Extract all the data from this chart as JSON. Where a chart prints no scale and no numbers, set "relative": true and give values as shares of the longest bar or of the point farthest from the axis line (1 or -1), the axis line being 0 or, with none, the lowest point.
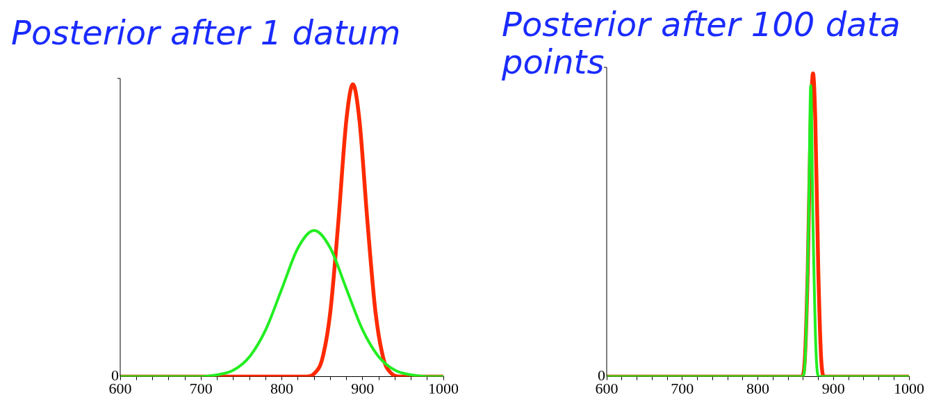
{
  "chart_data": [
    {
      "type": "line",
      "title": "Posterior after 1 datum",
      "relative": true,
      "xlim": [
        600,
        1000
      ],
      "xticks": [
        600,
        {
          "value": 620,
          "label": null
        },
        {
          "value": 640,
          "label": null
        },
        {
          "value": 660,
          "label": null
        },
        {
          "value": 680,
          "label": null
        },
        700,
        {
          "value": 720,
          "label": null
        },
        {
          "value": 740,
          "label": null
        },
        {
          "value": 760,
          "label": null
        },
        {
          "value": 780,
          "label": null
        },
        800,
        {
          "value": 820,
          "label": null
        },
        {
          "value": 840,
          "label": null
        },
        {
          "value": 860,
          "label": null
        },
        {
          "value": 880,
          "label": null
        },
        900,
        {
          "value": 920,
          "label": null
        },
        {
          "value": 940,
          "label": null
        },
        {
          "value": 960,
          "label": null
        },
        {
          "value": 980,
          "label": null
        },
        1000
      ],
      "legend": false,
      "grid": false,
      "marker": "none",
      "line_style": "solid",
      "annotations": [
        "0"
      ],
      "series": [
        {
          "color": "#ff2a00",
          "x": [
            600,
            830,
            840,
            850,
            860,
            870,
            880,
            888,
            896,
            906,
            916,
            926,
            936,
            946,
            1000
          ],
          "values": [
            0,
            0,
            0.01,
            0.06,
            0.22,
            0.53,
            0.88,
            1,
            0.88,
            0.53,
            0.22,
            0.06,
            0.01,
            0,
            0
          ]
        },
        {
          "color": "#22ee22",
          "x": [
            600,
            700,
            720,
            740,
            760,
            780,
            800,
            820,
            840,
            860,
            880,
            900,
            920,
            940,
            960,
            980,
            1000
          ],
          "values": [
            0,
            0,
            0.006,
            0.022,
            0.068,
            0.16,
            0.3,
            0.44,
            0.5,
            0.44,
            0.3,
            0.16,
            0.068,
            0.022,
            0.006,
            0,
            0
          ]
        }
      ]
    },
    {
      "type": "line",
      "title": "Posterior after 100 data points",
      "relative": true,
      "xlim": [
        600,
        1000
      ],
      "xticks": [
        600,
        {
          "value": 620,
          "label": null
        },
        {
          "value": 640,
          "label": null
        },
        {
          "value": 660,
          "label": null
        },
        {
          "value": 680,
          "label": null
        },
        700,
        {
          "value": 720,
          "label": null
        },
        {
          "value": 740,
          "label": null
        },
        {
          "value": 760,
          "label": null
        },
        {
          "value": 780,
          "label": null
        },
        800,
        {
          "value": 820,
          "label": null
        },
        {
          "value": 840,
          "label": null
        },
        {
          "value": 860,
          "label": null
        },
        {
          "value": 880,
          "label": null
        },
        900,
        {
          "value": 920,
          "label": null
        },
        {
          "value": 940,
          "label": null
        },
        {
          "value": 960,
          "label": null
        },
        {
          "value": 980,
          "label": null
        },
        1000
      ],
      "legend": false,
      "grid": false,
      "marker": "none",
      "line_style": "solid",
      "annotations": [
        "0"
      ],
      "series": [
        {
          "color": "#ff2a00",
          "x": [
            600,
            858,
            862,
            866,
            870,
            873,
            876,
            880,
            884,
            888,
            1000
          ],
          "values": [
            0,
            0,
            0.05,
            0.35,
            0.85,
            1,
            0.85,
            0.35,
            0.05,
            0,
            0
          ]
        },
        {
          "color": "#22ee22",
          "x": [
            600,
            859,
            863,
            867,
            870,
            873,
            877,
            881,
            1000
          ],
          "values": [
            0,
            0,
            0.08,
            0.5,
            0.96,
            0.5,
            0.08,
            0,
            0
          ]
        }
      ]
    }
  ]
}
